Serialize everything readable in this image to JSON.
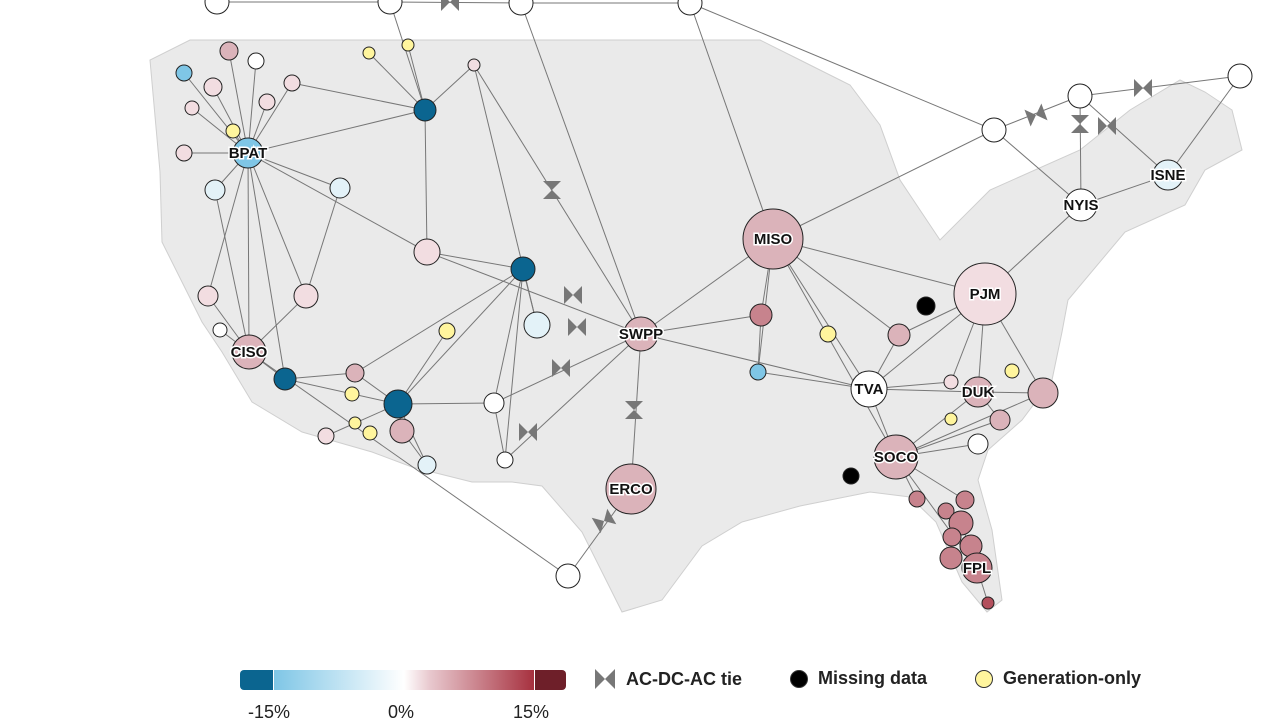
{
  "colors": {
    "map_fill": "#eaeaea",
    "edge": "#777777",
    "strong_negative": "#0b6590",
    "negative": "#7fc6e6",
    "slight_negative": "#e3f2f8",
    "neutral": "#ffffff",
    "slight_positive": "#f2dde1",
    "positive": "#dbb3ba",
    "strong_positive": "#c7838d",
    "very_strong_positive": "#b3505d",
    "missing": "#000000",
    "generation_only": "#fff59d"
  },
  "labeled_nodes": {
    "bpat": "BPAT",
    "ciso": "CISO",
    "swpp": "SWPP",
    "miso": "MISO",
    "pjm": "PJM",
    "tva": "TVA",
    "duk": "DUK",
    "soco": "SOCO",
    "erco": "ERCO",
    "fpl": "FPL",
    "nyis": "NYIS",
    "isne": "ISNE"
  },
  "legend": {
    "scale_ticks": [
      "-15%",
      "0%",
      "15%"
    ],
    "tie_label": "AC-DC-AC tie",
    "missing_label": "Missing data",
    "generation_only_label": "Generation-only",
    "tie_icon": "bowtie-icon"
  }
}
